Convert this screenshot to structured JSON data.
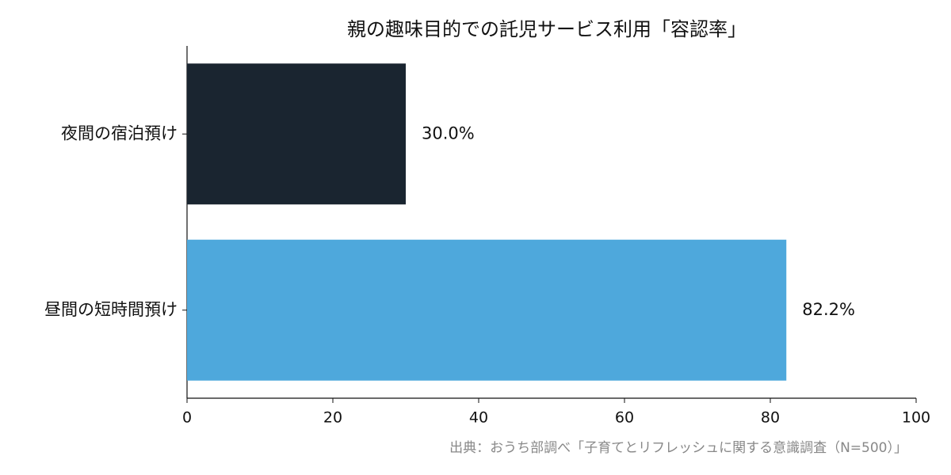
{
  "chart_data": {
    "type": "barh",
    "title": "親の趣味目的での託児サービス利用「容認率」",
    "categories": [
      "夜間の宿泊預け",
      "昼間の短時間預け"
    ],
    "values": [
      30.0,
      82.2
    ],
    "value_labels": [
      "30.0%",
      "82.2%"
    ],
    "colors": [
      "#1a2530",
      "#4ea8dc"
    ],
    "xlim": [
      0,
      100
    ],
    "xticks": [
      0,
      20,
      40,
      60,
      80,
      100
    ],
    "grid": false,
    "source": "出典：おうち部調べ「子育てとリフレッシュに関する意識調査（N=500）」"
  }
}
